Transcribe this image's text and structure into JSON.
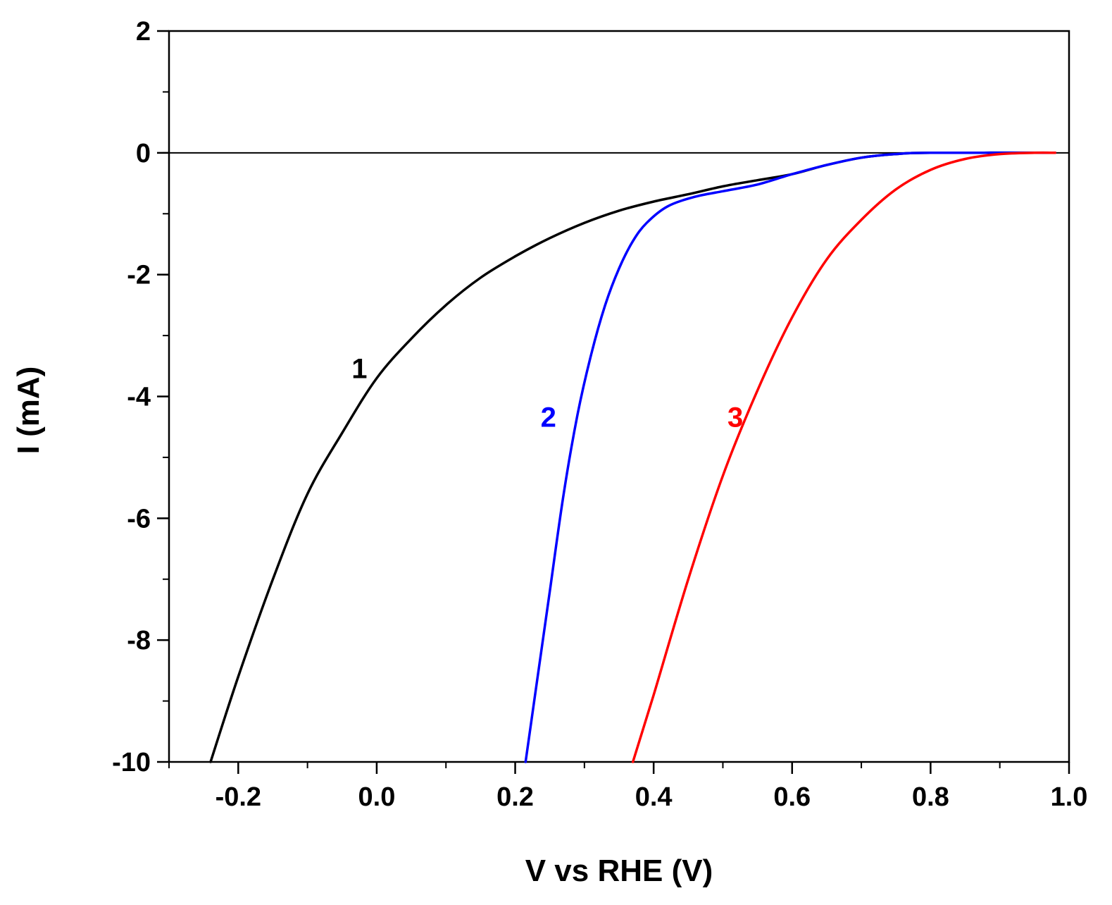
{
  "chart_data": {
    "type": "line",
    "xlabel": "V vs RHE (V)",
    "ylabel": "I (mA)",
    "xlim": [
      -0.3,
      1.0
    ],
    "ylim": [
      -10,
      2
    ],
    "x_ticks": [
      -0.2,
      0.0,
      0.2,
      0.4,
      0.6,
      0.8,
      1.0
    ],
    "x_tick_labels": [
      "-0.2",
      "0.0",
      "0.2",
      "0.4",
      "0.6",
      "0.8",
      "1.0"
    ],
    "x_minor_step": 0.1,
    "y_ticks": [
      -10,
      -8,
      -6,
      -4,
      -2,
      0,
      2
    ],
    "y_tick_labels": [
      "-10",
      "-8",
      "-6",
      "-4",
      "-2",
      "0",
      "2"
    ],
    "y_minor_step": 1,
    "reference_line_y": 0,
    "grid": false,
    "series": [
      {
        "name": "1",
        "color": "#000000",
        "label_anchor": {
          "x": -0.025,
          "y": -3.7
        },
        "points": [
          [
            -0.24,
            -10
          ],
          [
            -0.2,
            -8.6
          ],
          [
            -0.15,
            -7.0
          ],
          [
            -0.1,
            -5.6
          ],
          [
            -0.05,
            -4.6
          ],
          [
            0.0,
            -3.7
          ],
          [
            0.05,
            -3.05
          ],
          [
            0.1,
            -2.5
          ],
          [
            0.15,
            -2.05
          ],
          [
            0.2,
            -1.7
          ],
          [
            0.25,
            -1.4
          ],
          [
            0.3,
            -1.15
          ],
          [
            0.35,
            -0.95
          ],
          [
            0.4,
            -0.8
          ],
          [
            0.45,
            -0.68
          ],
          [
            0.5,
            -0.55
          ],
          [
            0.55,
            -0.45
          ],
          [
            0.6,
            -0.35
          ],
          [
            0.65,
            -0.2
          ],
          [
            0.7,
            -0.08
          ],
          [
            0.75,
            -0.02
          ],
          [
            0.8,
            0.0
          ],
          [
            0.98,
            0.0
          ]
        ]
      },
      {
        "name": "2",
        "color": "#0000ff",
        "label_anchor": {
          "x": 0.248,
          "y": -4.5
        },
        "points": [
          [
            0.215,
            -10
          ],
          [
            0.23,
            -8.8
          ],
          [
            0.25,
            -7.2
          ],
          [
            0.27,
            -5.6
          ],
          [
            0.29,
            -4.3
          ],
          [
            0.31,
            -3.3
          ],
          [
            0.33,
            -2.5
          ],
          [
            0.35,
            -1.9
          ],
          [
            0.37,
            -1.45
          ],
          [
            0.39,
            -1.15
          ],
          [
            0.42,
            -0.88
          ],
          [
            0.46,
            -0.72
          ],
          [
            0.5,
            -0.63
          ],
          [
            0.55,
            -0.52
          ],
          [
            0.6,
            -0.35
          ],
          [
            0.65,
            -0.2
          ],
          [
            0.7,
            -0.08
          ],
          [
            0.75,
            -0.02
          ],
          [
            0.8,
            0.0
          ],
          [
            0.98,
            0.0
          ]
        ]
      },
      {
        "name": "3",
        "color": "#ff0000",
        "label_anchor": {
          "x": 0.518,
          "y": -4.5
        },
        "points": [
          [
            0.37,
            -10
          ],
          [
            0.4,
            -8.9
          ],
          [
            0.45,
            -7.0
          ],
          [
            0.5,
            -5.3
          ],
          [
            0.55,
            -3.9
          ],
          [
            0.6,
            -2.7
          ],
          [
            0.65,
            -1.75
          ],
          [
            0.7,
            -1.1
          ],
          [
            0.75,
            -0.6
          ],
          [
            0.8,
            -0.28
          ],
          [
            0.85,
            -0.1
          ],
          [
            0.9,
            -0.02
          ],
          [
            0.95,
            0.0
          ],
          [
            0.98,
            0.0
          ]
        ]
      }
    ]
  }
}
